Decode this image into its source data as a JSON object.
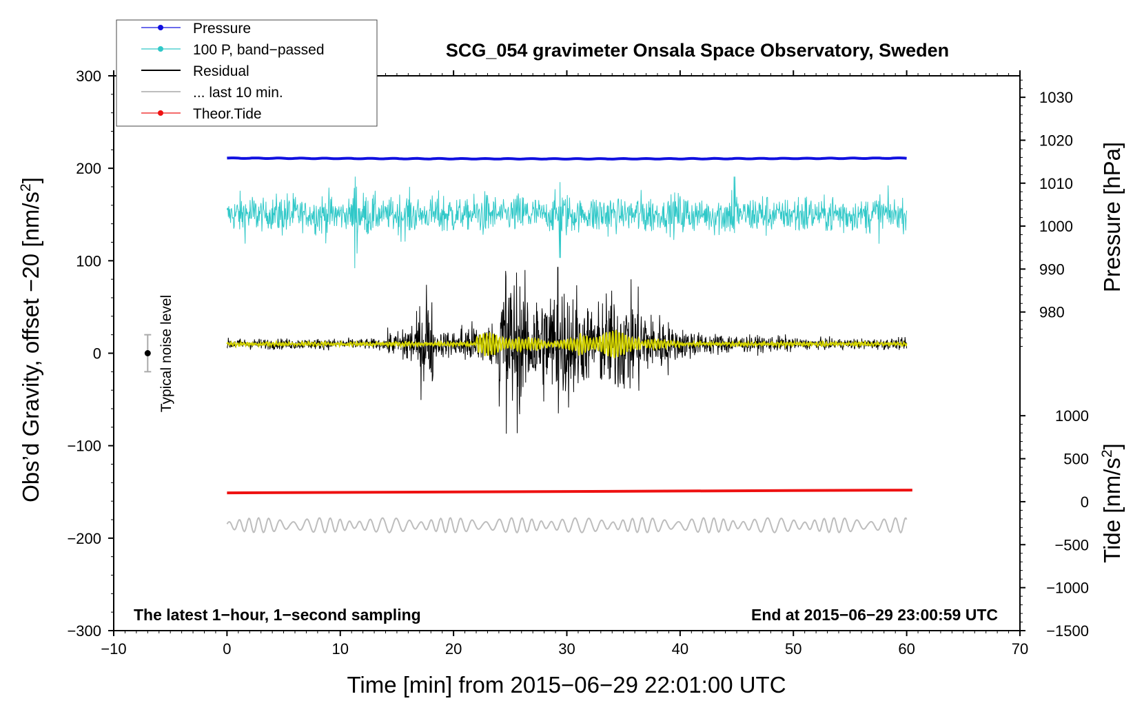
{
  "chart_data": {
    "type": "line",
    "title": "SCG_054 gravimeter Onsala Space Observatory, Sweden",
    "xlabel": "Time [min] from 2015−06−29 22:01:00 UTC",
    "ylabel": "Obs’d Gravity, offset −20 [nm/s",
    "ylabel_sup": "2",
    "ylabel_close": "]",
    "xlim": [
      -10,
      70
    ],
    "ylim": [
      -300,
      300
    ],
    "x_ticks": [
      -10,
      0,
      10,
      20,
      30,
      40,
      50,
      60,
      70
    ],
    "x_tick_labels": [
      "−10",
      "0",
      "10",
      "20",
      "30",
      "40",
      "50",
      "60",
      "70"
    ],
    "y_ticks": [
      300,
      200,
      100,
      0,
      -100,
      -200,
      -300
    ],
    "y_tick_labels": [
      "300",
      "200",
      "100",
      "0",
      "−100",
      "−200",
      "−300"
    ],
    "pressure_axis": {
      "label": "Pressure [hPa]",
      "ticks": [
        1030,
        1020,
        1010,
        1000,
        990,
        980
      ],
      "tick_labels": [
        "1030",
        "1020",
        "1010",
        "1000",
        "990",
        "980"
      ],
      "range_hPa": [
        970,
        1035
      ]
    },
    "tide_axis": {
      "label": "Tide [nm/s",
      "label_sup": "2",
      "label_close": "]",
      "ticks": [
        1000,
        500,
        0,
        -500,
        -1000,
        -1500
      ],
      "tick_labels": [
        "1000",
        "500",
        "0",
        "−500",
        "−1000",
        "−1500"
      ],
      "range": [
        -1500,
        1250
      ]
    },
    "legend": [
      {
        "name": "Pressure",
        "color": "#1010e0",
        "marker": true
      },
      {
        "name": "100 P, band−passed",
        "color": "#30c8c8",
        "marker": true
      },
      {
        "name": "Residual",
        "color": "#000000",
        "marker": false
      },
      {
        "name": "... last 10 min.",
        "color": "#bdbdbd",
        "marker": false
      },
      {
        "name": "Theor.Tide",
        "color": "#ee1111",
        "marker": true
      }
    ],
    "series": [
      {
        "name": "Pressure",
        "color": "#1010e0",
        "x_range": [
          0,
          60
        ],
        "approx_level_gravity_units": 211
      },
      {
        "name": "100 P, band−passed",
        "color": "#30c8c8",
        "x_range": [
          0,
          60
        ],
        "center": 150,
        "typical_amplitude": 15,
        "spikes": [
          [
            11.3,
            191,
            92
          ],
          [
            29.4,
            185,
            103
          ],
          [
            44.8,
            191,
            130
          ]
        ]
      },
      {
        "name": "Residual",
        "color": "#000000",
        "x_range": [
          0,
          60
        ],
        "center": 10,
        "peak_high": [
          [
            17.6,
            74
          ],
          [
            24.6,
            89
          ],
          [
            29.2,
            93
          ]
        ],
        "peak_low": [
          [
            24.6,
            -87
          ],
          [
            29.2,
            -65
          ]
        ]
      },
      {
        "name": "Residual, low−passed",
        "color": "#d4d400",
        "x_range": [
          0,
          60
        ],
        "center": 10
      },
      {
        "name": "Theor.Tide",
        "color": "#ee1111",
        "x_range": [
          0,
          60.5
        ],
        "y_start": -151,
        "y_end": -148
      },
      {
        "name": "... last 10 min.",
        "color": "#bdbdbd",
        "x_range": [
          0,
          60
        ],
        "center": -186,
        "typical_amplitude": 8
      }
    ],
    "noise_indicator": {
      "label": "Typical noise level",
      "x": -7,
      "y": 0,
      "error": 20
    },
    "annotations": {
      "bottom_left": "The latest 1−hour, 1−second sampling",
      "bottom_right": "End at 2015−06−29 23:00:59 UTC"
    }
  }
}
